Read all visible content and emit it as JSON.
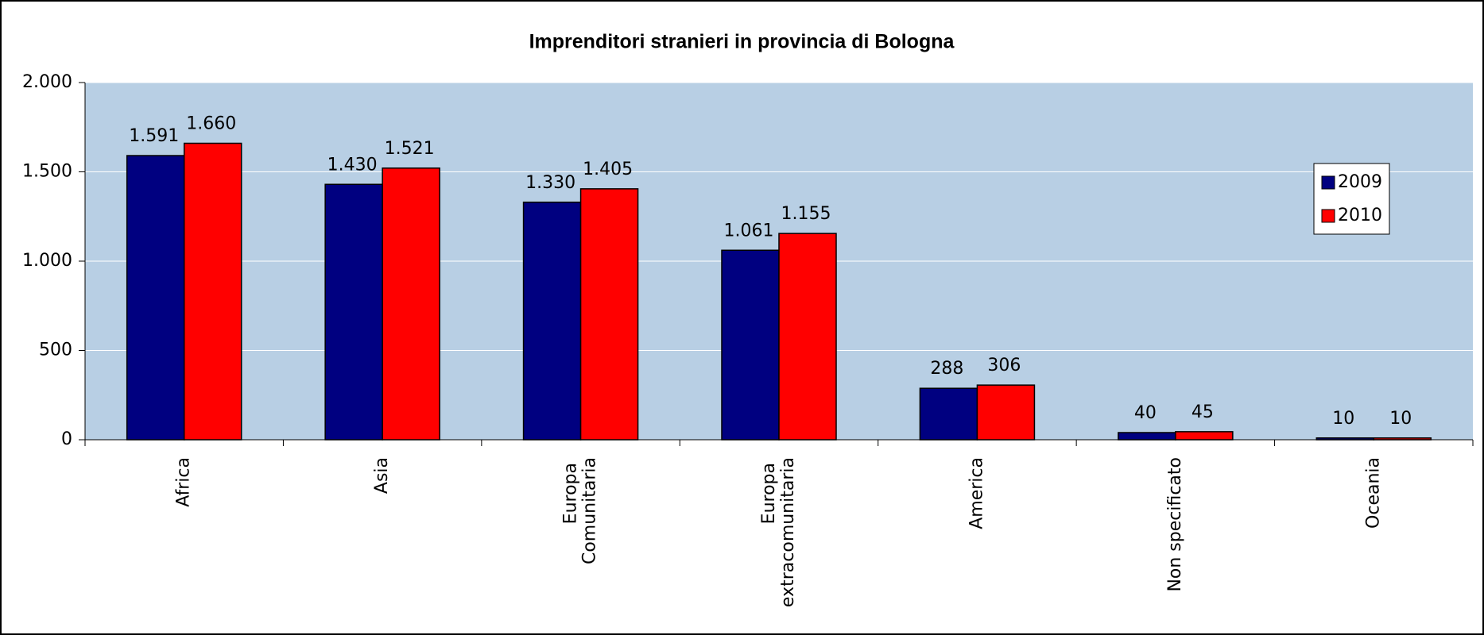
{
  "chart_data": {
    "type": "bar",
    "title": "Imprenditori stranieri in provincia di Bologna",
    "categories": [
      "Africa",
      "Asia",
      "Europa Comunitaria",
      "Europa extracomunitaria",
      "America",
      "Non specificato",
      "Oceania"
    ],
    "series": [
      {
        "name": "2009",
        "color": "#000080",
        "values": [
          1591,
          1430,
          1330,
          1061,
          288,
          40,
          10
        ],
        "value_labels": [
          "1.591",
          "1.430",
          "1.330",
          "1.061",
          "288",
          "40",
          "10"
        ]
      },
      {
        "name": "2010",
        "color": "#ff0000",
        "values": [
          1660,
          1521,
          1405,
          1155,
          306,
          45,
          10
        ],
        "value_labels": [
          "1.660",
          "1.521",
          "1.405",
          "1.155",
          "306",
          "45",
          "10"
        ]
      }
    ],
    "ylim": [
      0,
      2000
    ],
    "yticks": [
      0,
      500,
      {
        "value": 1000,
        "label": "1.000"
      },
      {
        "value": 1500,
        "label": "1.500"
      },
      {
        "value": 2000,
        "label": "2.000"
      }
    ],
    "grid": true,
    "legend": "right"
  }
}
